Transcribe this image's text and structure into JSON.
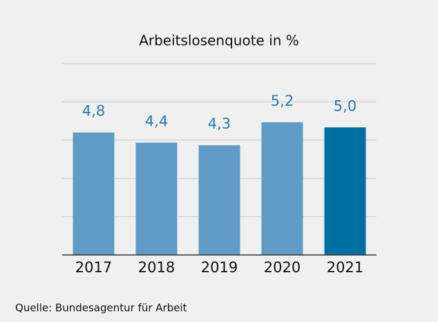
{
  "chart_data": {
    "type": "bar",
    "title": "Arbeitslosenquote in %",
    "categories": [
      "2017",
      "2018",
      "2019",
      "2020",
      "2021"
    ],
    "values": [
      4.8,
      4.4,
      4.3,
      5.2,
      5.0
    ],
    "value_labels": [
      "4,8",
      "4,4",
      "4,3",
      "5,2",
      "5,0"
    ],
    "colors": [
      "#5f9bc6",
      "#5f9bc6",
      "#5f9bc6",
      "#5f9bc6",
      "#0070a3"
    ],
    "ylim": [
      0,
      7.5
    ],
    "yticks": [
      0,
      1.5,
      3,
      4.5,
      6,
      7.5
    ],
    "grid": true,
    "source": "Quelle: Bundesagentur für Arbeit"
  }
}
